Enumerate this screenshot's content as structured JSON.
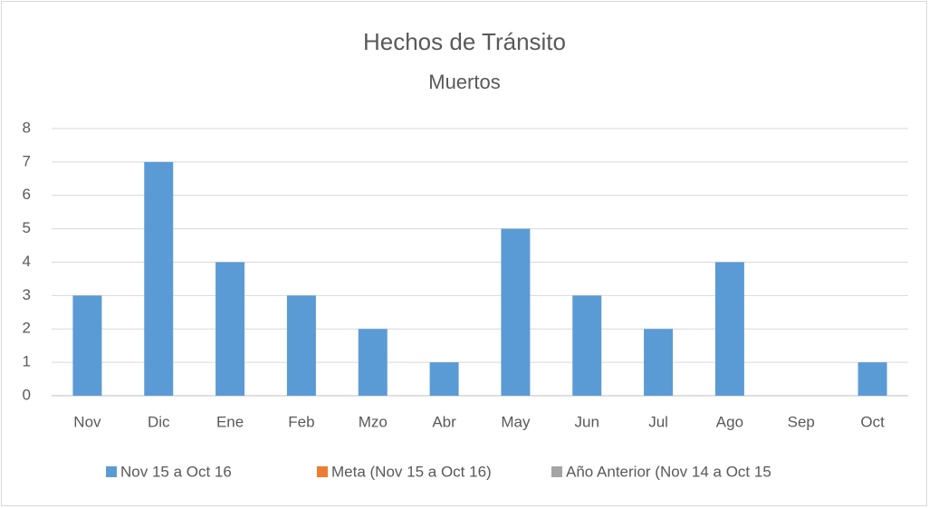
{
  "chart_data": {
    "type": "bar",
    "title": "Hechos de Tránsito",
    "subtitle": "Muertos",
    "categories": [
      "Nov",
      "Dic",
      "Ene",
      "Feb",
      "Mzo",
      "Abr",
      "May",
      "Jun",
      "Jul",
      "Ago",
      "Sep",
      "Oct"
    ],
    "series": [
      {
        "name": "Nov 15 a Oct 16",
        "color": "#5b9bd5",
        "values": [
          3,
          7,
          4,
          3,
          2,
          1,
          5,
          3,
          2,
          4,
          0,
          1
        ]
      },
      {
        "name": "Meta (Nov 15 a Oct 16)",
        "color": "#ed7d31",
        "values": [
          null,
          null,
          null,
          null,
          null,
          null,
          null,
          null,
          null,
          null,
          null,
          null
        ]
      },
      {
        "name": "Año Anterior (Nov 14 a Oct 15",
        "color": "#a5a5a5",
        "values": [
          null,
          null,
          null,
          null,
          null,
          null,
          null,
          null,
          null,
          null,
          null,
          null
        ]
      }
    ],
    "ylim": [
      0,
      8
    ],
    "yticks": [
      0,
      1,
      2,
      3,
      4,
      5,
      6,
      7,
      8
    ],
    "grid": true,
    "legend": "bottom"
  }
}
